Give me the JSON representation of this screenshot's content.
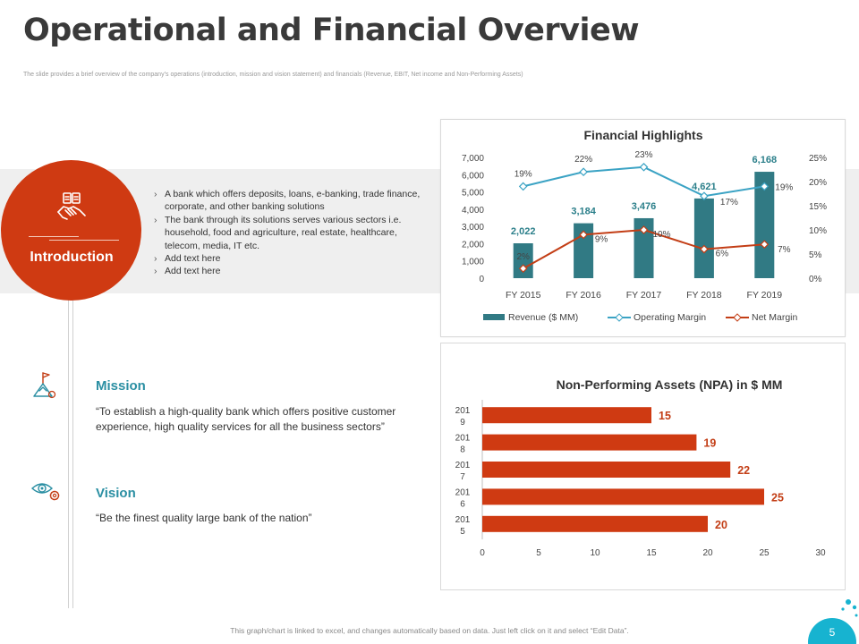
{
  "header": {
    "title": "Operational and Financial Overview",
    "subtitle": "The slide provides a brief overview of the company’s operations (introduction, mission and vision statement) and financials (Revenue, EBIT, Net income and Non-Performing Assets)"
  },
  "intro": {
    "label": "Introduction",
    "icon": "handshake-icon",
    "items": [
      "A bank which offers deposits, loans, e-banking, trade finance, corporate, and other banking solutions",
      "The bank through its solutions serves various sectors i.e. household, food and agriculture, real estate, healthcare, telecom, media, IT etc.",
      "Add text here",
      "Add text here"
    ]
  },
  "mission": {
    "title": "Mission",
    "text": "“To establish a high-quality bank which offers positive customer experience, high quality services for all the business sectors”",
    "icon": "mountain-flag-icon"
  },
  "vision": {
    "title": "Vision",
    "text": "“Be the finest quality large bank of the nation”",
    "icon": "eye-gear-icon"
  },
  "footer": {
    "note": "This graph/chart is linked to excel, and changes automatically based on data. Just left click on it and select “Edit Data”.",
    "page": "5"
  },
  "colors": {
    "accent": "#cf3a12",
    "teal_bar": "#317a84",
    "operating_line": "#3ba3c4",
    "net_line": "#c33e16",
    "heading_teal": "#2b8fa3",
    "page_badge": "#17b3d0"
  },
  "chart_data": [
    {
      "type": "bar",
      "title": "Financial Highlights",
      "categories": [
        "FY 2015",
        "FY 2016",
        "FY 2017",
        "FY 2018",
        "FY 2019"
      ],
      "ylim": [
        0,
        7000
      ],
      "yticks": [
        "0",
        "1,000",
        "2,000",
        "3,000",
        "4,000",
        "5,000",
        "6,000",
        "7,000"
      ],
      "y2lim": [
        0,
        25
      ],
      "y2ticks": [
        "0%",
        "5%",
        "10%",
        "15%",
        "20%",
        "25%"
      ],
      "legend_position": "bottom",
      "series": [
        {
          "name": "Revenue ($ MM)",
          "type": "bar",
          "axis": "primary",
          "values": [
            2022,
            3184,
            3476,
            4621,
            6168
          ],
          "labels": [
            "2,022",
            "3,184",
            "3,476",
            "4,621",
            "6,168"
          ]
        },
        {
          "name": "Operating Margin",
          "type": "line",
          "axis": "secondary",
          "values": [
            19,
            22,
            23,
            17,
            19
          ],
          "labels": [
            "19%",
            "22%",
            "23%",
            "17%",
            "19%"
          ]
        },
        {
          "name": "Net Margin",
          "type": "line",
          "axis": "secondary",
          "values": [
            2,
            9,
            10,
            6,
            7
          ],
          "labels": [
            "2%",
            "9%",
            "10%",
            "6%",
            "7%"
          ]
        }
      ]
    },
    {
      "type": "bar",
      "orientation": "horizontal",
      "title": "Non-Performing Assets (NPA) in $ MM",
      "categories": [
        "2019",
        "2018",
        "2017",
        "2016",
        "2015"
      ],
      "values": [
        15,
        19,
        22,
        25,
        20
      ],
      "xlim": [
        0,
        30
      ],
      "xticks": [
        "0",
        "5",
        "10",
        "15",
        "20",
        "25",
        "30"
      ]
    }
  ]
}
